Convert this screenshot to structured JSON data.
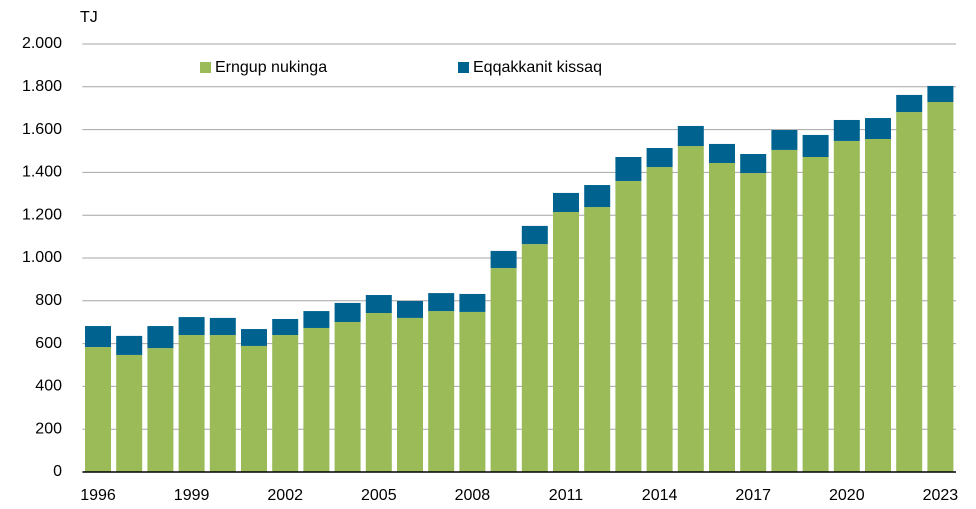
{
  "chart_data": {
    "type": "stacked_bar",
    "y_label": "TJ",
    "categories": [
      "1996",
      null,
      null,
      "1999",
      null,
      null,
      "2002",
      null,
      null,
      "2005",
      null,
      null,
      "2008",
      null,
      null,
      "2011",
      null,
      null,
      "2014",
      null,
      null,
      "2017",
      null,
      null,
      "2020",
      null,
      null,
      "2023"
    ],
    "series": [
      {
        "name": "Erngup nukinga",
        "color": "#9bbb59",
        "values": [
          584,
          547,
          579,
          640,
          640,
          589,
          640,
          673,
          701,
          743,
          720,
          752,
          748,
          953,
          1065,
          1215,
          1238,
          1360,
          1425,
          1523,
          1444,
          1397,
          1505,
          1472,
          1547,
          1556,
          1682,
          1729
        ]
      },
      {
        "name": "Eqqakkanit kissaq",
        "color": "#00628f",
        "values": [
          98,
          89,
          103,
          84,
          80,
          79,
          75,
          79,
          89,
          84,
          79,
          84,
          84,
          80,
          85,
          89,
          103,
          112,
          89,
          94,
          89,
          89,
          93,
          103,
          98,
          98,
          80,
          75
        ]
      }
    ],
    "ylim": [
      0,
      2000
    ],
    "yticks": [
      0,
      200,
      400,
      600,
      800,
      {
        "value": 1000,
        "label": "1.000"
      },
      {
        "value": 1200,
        "label": "1.200"
      },
      {
        "value": 1400,
        "label": "1.400"
      },
      {
        "value": 1600,
        "label": "1.600"
      },
      {
        "value": 1800,
        "label": "1.800"
      },
      {
        "value": 2000,
        "label": "2.000"
      }
    ],
    "grid": true,
    "legend": "top"
  }
}
